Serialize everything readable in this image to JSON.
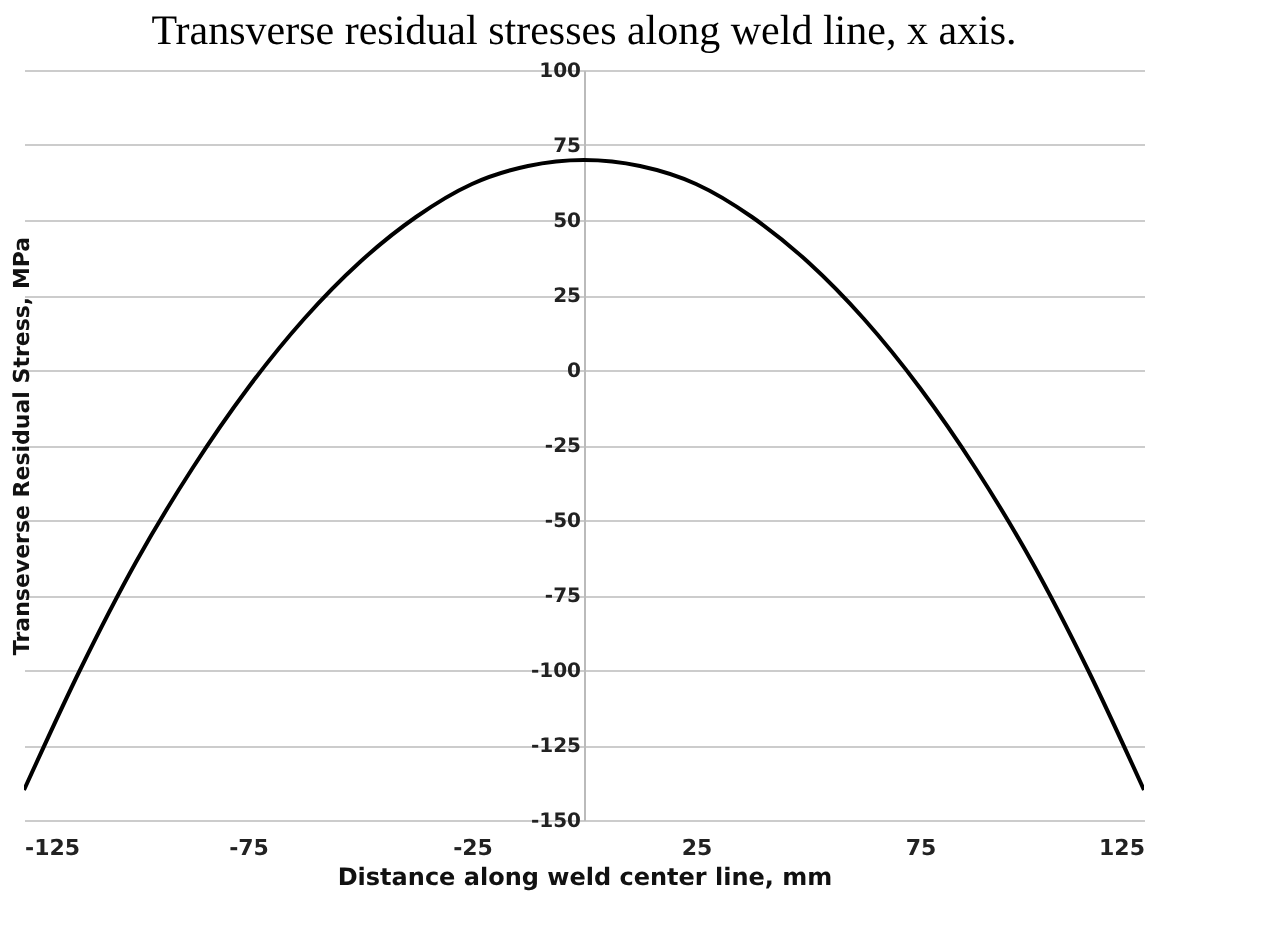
{
  "chart_data": {
    "type": "line",
    "title": "Transverse residual stresses along weld line, x axis.",
    "xlabel": "Distance along weld center line, mm",
    "ylabel": "Transeverse Residual Stress, MPa",
    "x": [
      -125,
      -112.5,
      -100,
      -87.5,
      -75,
      -62.5,
      -50,
      -37.5,
      -25,
      -12.5,
      0,
      12.5,
      25,
      37.5,
      50,
      62.5,
      75,
      87.5,
      100,
      112.5,
      125
    ],
    "series": [
      {
        "color": "#000000",
        "values": [
          -140,
          -100,
          -64,
          -33,
          -6,
          17,
          36,
          51,
          62,
          68,
          70,
          68,
          62,
          51,
          36,
          17,
          -6,
          -33,
          -64,
          -100,
          -140
        ]
      }
    ],
    "xlim": [
      -125,
      125
    ],
    "xticks": [
      -125,
      -75,
      -25,
      25,
      75,
      125
    ],
    "ylim": [
      -150,
      100
    ],
    "yticks": [
      -150,
      -125,
      -100,
      -75,
      -50,
      -25,
      0,
      25,
      50,
      75,
      100
    ],
    "grid": "y",
    "marker": "none",
    "line_style": "solid"
  }
}
